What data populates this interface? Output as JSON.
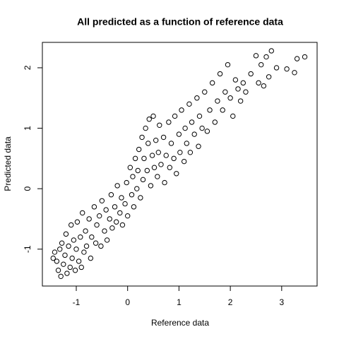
{
  "chart_data": {
    "type": "scatter",
    "title": "All predicted as a function of reference data",
    "xlabel": "Reference data",
    "ylabel": "Predicted data",
    "color": "#000000",
    "x": [
      -1.45,
      -1.42,
      -1.38,
      -1.35,
      -1.32,
      -1.3,
      -1.28,
      -1.25,
      -1.22,
      -1.2,
      -1.18,
      -1.15,
      -1.12,
      -1.1,
      -1.08,
      -1.05,
      -1.02,
      -1.0,
      -0.98,
      -0.95,
      -0.92,
      -0.9,
      -0.88,
      -0.85,
      -0.82,
      -0.8,
      -0.75,
      -0.72,
      -0.7,
      -0.65,
      -0.62,
      -0.6,
      -0.55,
      -0.52,
      -0.5,
      -0.45,
      -0.42,
      -0.4,
      -0.35,
      -0.32,
      -0.3,
      -0.25,
      -0.22,
      -0.2,
      -0.15,
      -0.12,
      -0.1,
      -0.05,
      -0.02,
      0.0,
      0.05,
      0.08,
      0.1,
      0.12,
      0.15,
      0.18,
      0.2,
      0.22,
      0.25,
      0.28,
      0.3,
      0.32,
      0.35,
      0.38,
      0.4,
      0.42,
      0.45,
      0.48,
      0.5,
      0.52,
      0.55,
      0.58,
      0.6,
      0.62,
      0.65,
      0.7,
      0.72,
      0.75,
      0.8,
      0.82,
      0.85,
      0.9,
      0.92,
      0.95,
      1.0,
      1.02,
      1.05,
      1.1,
      1.12,
      1.15,
      1.2,
      1.22,
      1.25,
      1.3,
      1.35,
      1.38,
      1.4,
      1.45,
      1.5,
      1.55,
      1.6,
      1.65,
      1.7,
      1.75,
      1.8,
      1.85,
      1.9,
      1.95,
      2.0,
      2.05,
      2.1,
      2.15,
      2.2,
      2.25,
      2.3,
      2.4,
      2.5,
      2.55,
      2.6,
      2.65,
      2.8,
      2.75,
      2.9,
      3.1,
      3.3,
      3.45,
      3.25,
      2.7
    ],
    "y": [
      -1.15,
      -1.05,
      -1.2,
      -1.35,
      -1.0,
      -1.45,
      -0.9,
      -1.25,
      -1.1,
      -0.75,
      -1.4,
      -0.95,
      -1.3,
      -0.6,
      -1.15,
      -0.85,
      -1.35,
      -1.0,
      -0.55,
      -1.2,
      -0.8,
      -1.3,
      -0.4,
      -1.05,
      -0.7,
      -0.95,
      -0.5,
      -1.15,
      -0.8,
      -0.3,
      -0.9,
      -0.6,
      -0.45,
      -0.95,
      -0.2,
      -0.7,
      -0.35,
      -0.85,
      -0.5,
      -0.1,
      -0.65,
      -0.3,
      -0.55,
      0.05,
      -0.4,
      -0.15,
      -0.6,
      -0.25,
      0.1,
      -0.45,
      0.35,
      -0.1,
      0.2,
      -0.3,
      0.5,
      0.0,
      0.3,
      0.65,
      -0.15,
      0.85,
      0.15,
      0.5,
      1.0,
      0.3,
      0.75,
      1.15,
      0.05,
      0.55,
      1.2,
      0.35,
      0.8,
      0.2,
      0.6,
      1.05,
      0.4,
      0.85,
      0.1,
      0.55,
      1.1,
      0.35,
      0.75,
      0.5,
      1.2,
      0.25,
      0.9,
      0.6,
      1.3,
      0.45,
      1.0,
      0.75,
      1.4,
      0.6,
      1.1,
      0.9,
      1.5,
      0.7,
      1.2,
      1.0,
      1.6,
      0.95,
      1.3,
      1.75,
      1.1,
      1.45,
      1.9,
      1.3,
      1.6,
      2.05,
      1.5,
      1.2,
      1.8,
      1.65,
      1.45,
      1.75,
      1.6,
      1.9,
      2.2,
      1.75,
      2.05,
      1.7,
      2.28,
      1.85,
      2.0,
      1.98,
      2.15,
      2.18,
      1.92,
      2.18
    ],
    "xlim": [
      -1.66,
      3.69
    ],
    "ylim": [
      -1.61,
      2.42
    ],
    "xticks": [
      -1,
      0,
      1,
      2,
      3
    ],
    "yticks": [
      -1,
      0,
      1,
      2
    ]
  }
}
